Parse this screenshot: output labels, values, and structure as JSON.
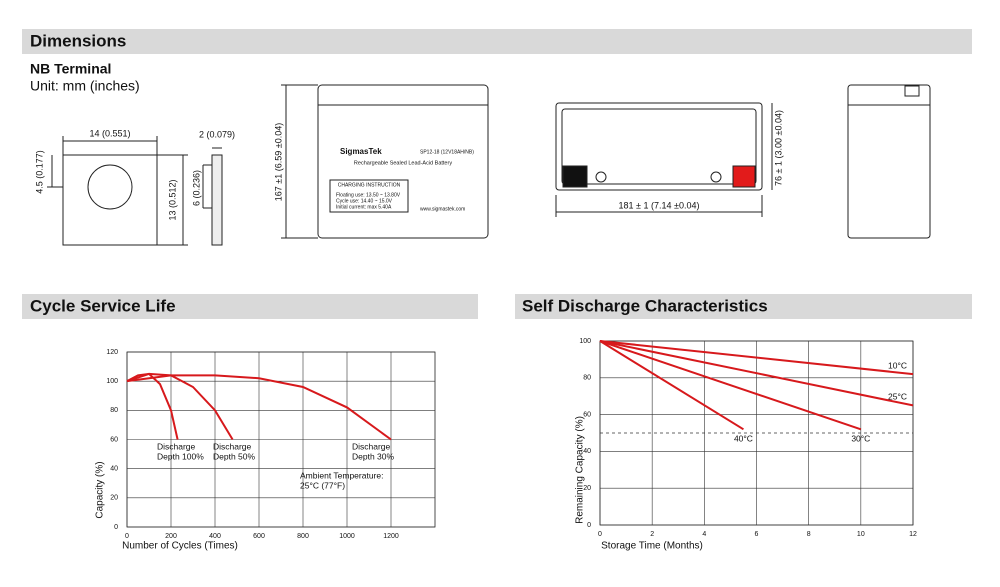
{
  "dimensions": {
    "title": "Dimensions",
    "subtitle": "NB Terminal",
    "unit": "Unit: mm (inches)",
    "terminal_width": "14 (0.551)",
    "terminal_hole": "4.5 (0.177)",
    "terminal_height": "13 (0.512)",
    "terminal_thickness": "2 (0.079)",
    "terminal_side": "6 (0.236)",
    "battery_height": "167 ±1 (6.59 ±0.04)",
    "battery_depth": "76 ± 1 (3.00 ±0.04)",
    "battery_length": "181 ± 1 (7.14 ±0.04)"
  },
  "battery_label": {
    "brand": "SigmasTek",
    "model": "SP12-18 (12V18AH/NB)",
    "description": "Rechargeable Sealed Lead-Acid Battery",
    "instruction_title": "CHARGING INSTRUCTION",
    "floating": "Floating use: 13.50 ~ 13.80V",
    "cycle": "Cycle use: 14.40 ~ 15.0V",
    "current": "Initial current: max 5.40A",
    "website": "www.sigmastek.com"
  },
  "chart_data": [
    {
      "type": "line",
      "title": "Cycle Service Life",
      "x_label": "Number of Cycles (Times)",
      "y_label": "Capacity (%)",
      "xlim": [
        0,
        1400
      ],
      "ylim": [
        0,
        120
      ],
      "xticks": [
        0,
        200,
        400,
        600,
        800,
        1000,
        1200
      ],
      "yticks": [
        0,
        20,
        40,
        60,
        80,
        100,
        120
      ],
      "grid": true,
      "series": [
        {
          "color": "#d7191c",
          "x": [
            0,
            50,
            100,
            150,
            200,
            230
          ],
          "values": [
            100,
            104,
            105,
            98,
            80,
            60
          ]
        },
        {
          "color": "#d7191c",
          "x": [
            0,
            100,
            200,
            300,
            400,
            480
          ],
          "values": [
            100,
            105,
            104,
            96,
            80,
            60
          ]
        },
        {
          "color": "#d7191c",
          "x": [
            0,
            200,
            400,
            600,
            800,
            1000,
            1200
          ],
          "values": [
            100,
            104,
            104,
            102,
            96,
            82,
            60
          ]
        }
      ],
      "annotations": [
        {
          "lines": [
            "Discharge",
            "Depth 100%"
          ]
        },
        {
          "lines": [
            "Discharge",
            "Depth 50%"
          ]
        },
        {
          "lines": [
            "Discharge",
            "Depth 30%"
          ]
        },
        {
          "lines": [
            "Ambient Temperature:",
            "25°C (77°F)"
          ]
        }
      ]
    },
    {
      "type": "line",
      "title": "Self Discharge Characteristics",
      "x_label": "Storage Time (Months)",
      "y_label": "Remaining Capacity (%)",
      "xlim": [
        0,
        12
      ],
      "ylim": [
        0,
        100
      ],
      "xticks": [
        0,
        2,
        4,
        6,
        8,
        10,
        12
      ],
      "yticks": [
        0,
        20,
        40,
        60,
        80,
        100
      ],
      "grid": true,
      "hline": 50,
      "series": [
        {
          "name": "10°C",
          "color": "#d7191c",
          "x": [
            0,
            12
          ],
          "values": [
            100,
            82
          ]
        },
        {
          "name": "25°C",
          "color": "#d7191c",
          "x": [
            0,
            12
          ],
          "values": [
            100,
            65
          ]
        },
        {
          "name": "40°C",
          "color": "#d7191c",
          "x": [
            0,
            5.5
          ],
          "values": [
            100,
            52
          ]
        },
        {
          "name": "30°C",
          "color": "#d7191c",
          "x": [
            0,
            10
          ],
          "values": [
            100,
            52
          ]
        }
      ]
    }
  ]
}
